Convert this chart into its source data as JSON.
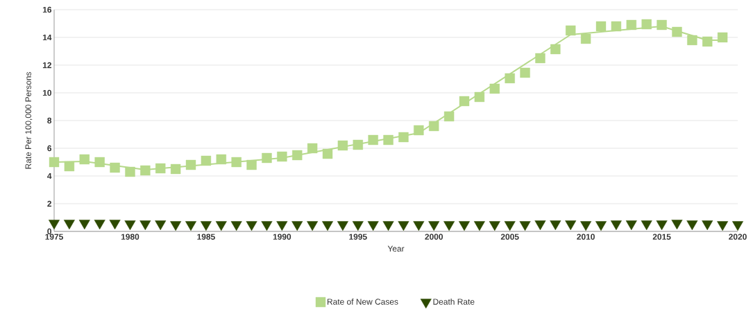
{
  "chart_data": {
    "type": "scatter",
    "xlabel": "Year",
    "ylabel": "Rate Per 100,000 Persons",
    "xlim": [
      1975,
      2020
    ],
    "ylim": [
      0,
      16
    ],
    "xticks": [
      1975,
      1980,
      1985,
      1990,
      1995,
      2000,
      2005,
      2010,
      2015,
      2020
    ],
    "yticks": [
      0,
      2,
      4,
      6,
      8,
      10,
      12,
      14,
      16
    ],
    "grid": "y",
    "legend": "bottom",
    "series": [
      {
        "name": "Rate of New Cases",
        "marker": "square",
        "color": "#b6d98a",
        "x": [
          1975,
          1976,
          1977,
          1978,
          1979,
          1980,
          1981,
          1982,
          1983,
          1984,
          1985,
          1986,
          1987,
          1988,
          1989,
          1990,
          1991,
          1992,
          1993,
          1994,
          1995,
          1996,
          1997,
          1998,
          1999,
          2000,
          2001,
          2002,
          2003,
          2004,
          2005,
          2006,
          2007,
          2008,
          2009,
          2010,
          2011,
          2012,
          2013,
          2014,
          2015,
          2016,
          2017,
          2018,
          2019
        ],
        "values": [
          5.0,
          4.7,
          5.2,
          5.0,
          4.6,
          4.3,
          4.4,
          4.55,
          4.5,
          4.8,
          5.1,
          5.2,
          5.0,
          4.8,
          5.3,
          5.4,
          5.5,
          6.0,
          5.6,
          6.2,
          6.25,
          6.6,
          6.6,
          6.8,
          7.3,
          7.6,
          8.3,
          9.4,
          9.7,
          10.3,
          11.05,
          11.45,
          12.5,
          13.15,
          14.5,
          13.9,
          14.8,
          14.8,
          14.9,
          14.95,
          14.9,
          14.4,
          13.8,
          13.7,
          14.0
        ]
      },
      {
        "type": "line",
        "marker": "none",
        "color": "#b6d98a",
        "x": [
          1975,
          1977,
          1981,
          1990,
          1999,
          2009,
          2015,
          2018,
          2019
        ],
        "values": [
          5.0,
          5.05,
          4.45,
          5.3,
          7.1,
          14.2,
          14.8,
          13.8,
          13.8
        ]
      },
      {
        "name": "Death Rate",
        "marker": "triangle",
        "color": "#2d4a00",
        "x": [
          1975,
          1976,
          1977,
          1978,
          1979,
          1980,
          1981,
          1982,
          1983,
          1984,
          1985,
          1986,
          1987,
          1988,
          1989,
          1990,
          1991,
          1992,
          1993,
          1994,
          1995,
          1996,
          1997,
          1998,
          1999,
          2000,
          2001,
          2002,
          2003,
          2004,
          2005,
          2006,
          2007,
          2008,
          2009,
          2010,
          2011,
          2012,
          2013,
          2014,
          2015,
          2016,
          2017,
          2018,
          2019,
          2020
        ],
        "values": [
          0.6,
          0.6,
          0.6,
          0.6,
          0.6,
          0.55,
          0.55,
          0.55,
          0.5,
          0.5,
          0.5,
          0.5,
          0.5,
          0.5,
          0.5,
          0.5,
          0.5,
          0.5,
          0.5,
          0.5,
          0.5,
          0.5,
          0.5,
          0.5,
          0.5,
          0.5,
          0.5,
          0.5,
          0.5,
          0.5,
          0.5,
          0.5,
          0.55,
          0.55,
          0.55,
          0.5,
          0.5,
          0.55,
          0.55,
          0.55,
          0.55,
          0.6,
          0.55,
          0.55,
          0.5,
          0.5
        ]
      }
    ]
  }
}
